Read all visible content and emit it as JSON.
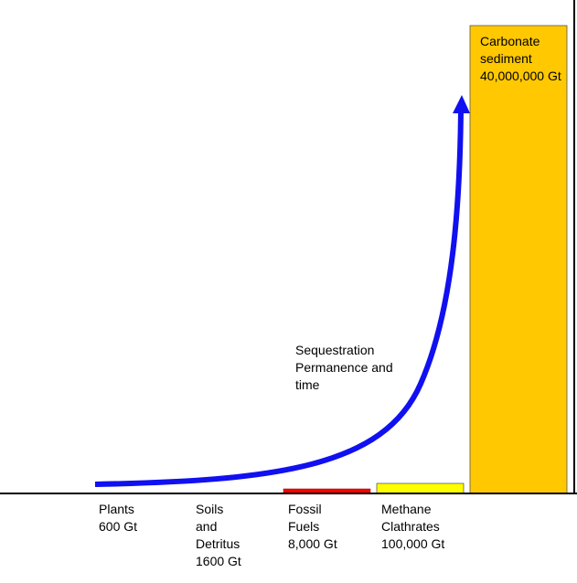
{
  "pools": [
    {
      "name": [
        "Plants"
      ],
      "amount": "600 Gt"
    },
    {
      "name": [
        "Soils",
        "and",
        "Detritus"
      ],
      "amount": "1600 Gt"
    },
    {
      "name": [
        "Fossil",
        "Fuels"
      ],
      "amount": "8,000 Gt"
    },
    {
      "name": [
        "Methane",
        "Clathrates"
      ],
      "amount": "100,000 Gt"
    },
    {
      "name": [
        "Carbonate",
        "sediment"
      ],
      "amount": "40,000,000 Gt"
    }
  ],
  "annotation": [
    "Sequestration",
    "Permanence and",
    "time"
  ]
}
